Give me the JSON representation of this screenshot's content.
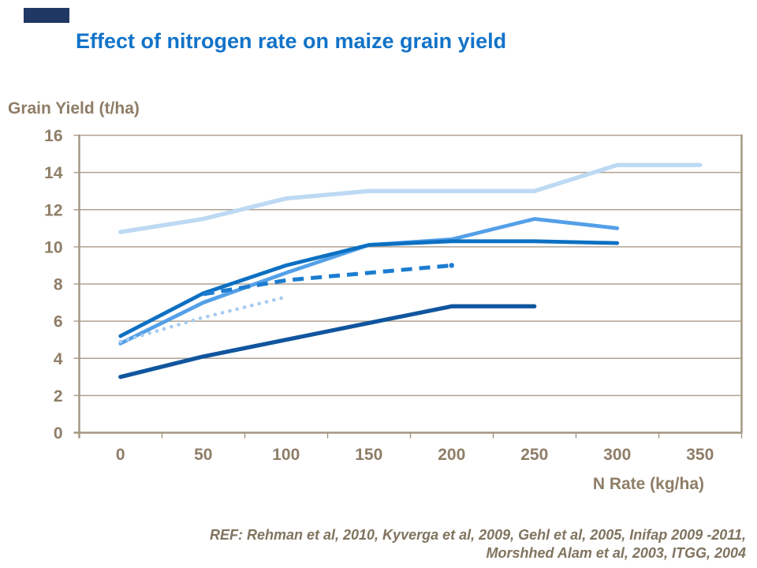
{
  "corner_mark": {
    "color": "#1F3864"
  },
  "title": {
    "text": "Effect of nitrogen rate on maize grain yield",
    "color": "#1273C8"
  },
  "footer": {
    "ref_line1": "REF: Rehman et al, 2010, Kyverga et al, 2009, Gehl et al, 2005, Inifap 2009 -2011,",
    "ref_line2": "Morshhed Alam et al, 2003, ITGG, 2004",
    "color": "#80735F"
  },
  "chart_data": {
    "type": "line",
    "title": "Effect of nitrogen rate on maize grain yield",
    "xlabel": "N Rate (kg/ha)",
    "ylabel": "Grain Yield (t/ha)",
    "x_ticks": [
      0,
      50,
      100,
      150,
      200,
      250,
      300,
      350
    ],
    "ylim": [
      0,
      16
    ],
    "y_tick_step": 2,
    "grid": "horizontal",
    "legend": "none",
    "axis_text_color": "#8E7D67",
    "grid_color": "#AFA292",
    "axis_line_color": "#A3957F",
    "series": [
      {
        "name": "pale-blue-solid",
        "color": "#BDD9F3",
        "style": "solid",
        "width": 5.4,
        "x": [
          0,
          50,
          100,
          150,
          200,
          250,
          300,
          350
        ],
        "values": [
          10.8,
          11.5,
          12.6,
          13.0,
          13.0,
          13.0,
          14.4,
          14.4
        ]
      },
      {
        "name": "sky-blue-solid",
        "color": "#54A0E8",
        "style": "solid",
        "width": 4.8,
        "x": [
          0,
          50,
          100,
          150,
          200,
          250,
          300
        ],
        "values": [
          4.8,
          7.0,
          8.6,
          10.1,
          10.4,
          11.5,
          11.0
        ]
      },
      {
        "name": "blue-solid",
        "color": "#0C70C2",
        "style": "solid",
        "width": 4.8,
        "x": [
          0,
          50,
          100,
          150,
          200,
          250,
          300
        ],
        "values": [
          5.2,
          7.5,
          9.0,
          10.1,
          10.3,
          10.3,
          10.2
        ]
      },
      {
        "name": "navy-blue-solid",
        "color": "#10559E",
        "style": "solid",
        "width": 5.2,
        "x": [
          0,
          50,
          100,
          150,
          200,
          250
        ],
        "values": [
          3.0,
          4.1,
          5.0,
          5.9,
          6.8,
          6.8
        ]
      },
      {
        "name": "blue-dashed",
        "color": "#1B7CD0",
        "style": "dashed",
        "width": 5.0,
        "end_dot": true,
        "x": [
          50,
          100,
          150,
          200
        ],
        "values": [
          7.45,
          8.2,
          8.6,
          9.0
        ]
      },
      {
        "name": "pale-blue-dotted",
        "color": "#A6CBF0",
        "style": "dotted",
        "width": 4.6,
        "x": [
          0,
          50,
          100
        ],
        "values": [
          4.9,
          6.2,
          7.3
        ]
      }
    ]
  }
}
